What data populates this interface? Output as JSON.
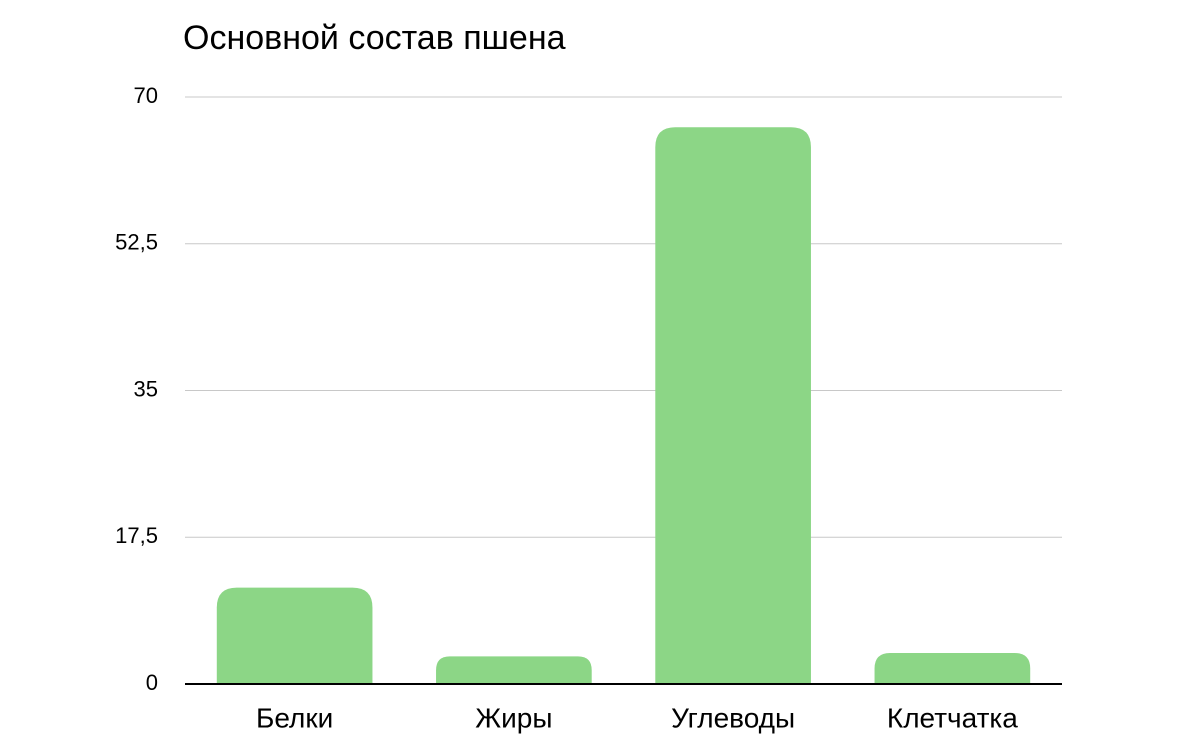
{
  "chart_data": {
    "type": "bar",
    "title": "Основной состав пшена",
    "categories": [
      "Белки",
      "Жиры",
      "Углеводы",
      "Клетчатка"
    ],
    "values": [
      11.5,
      3.3,
      66.4,
      3.7
    ],
    "color": "#8cd686",
    "ylim": [
      0,
      70
    ],
    "yticks": [
      0,
      {
        "value": 17.5,
        "label": "17,5"
      },
      35,
      {
        "value": 52.5,
        "label": "52,5"
      },
      70
    ],
    "grid": true
  }
}
